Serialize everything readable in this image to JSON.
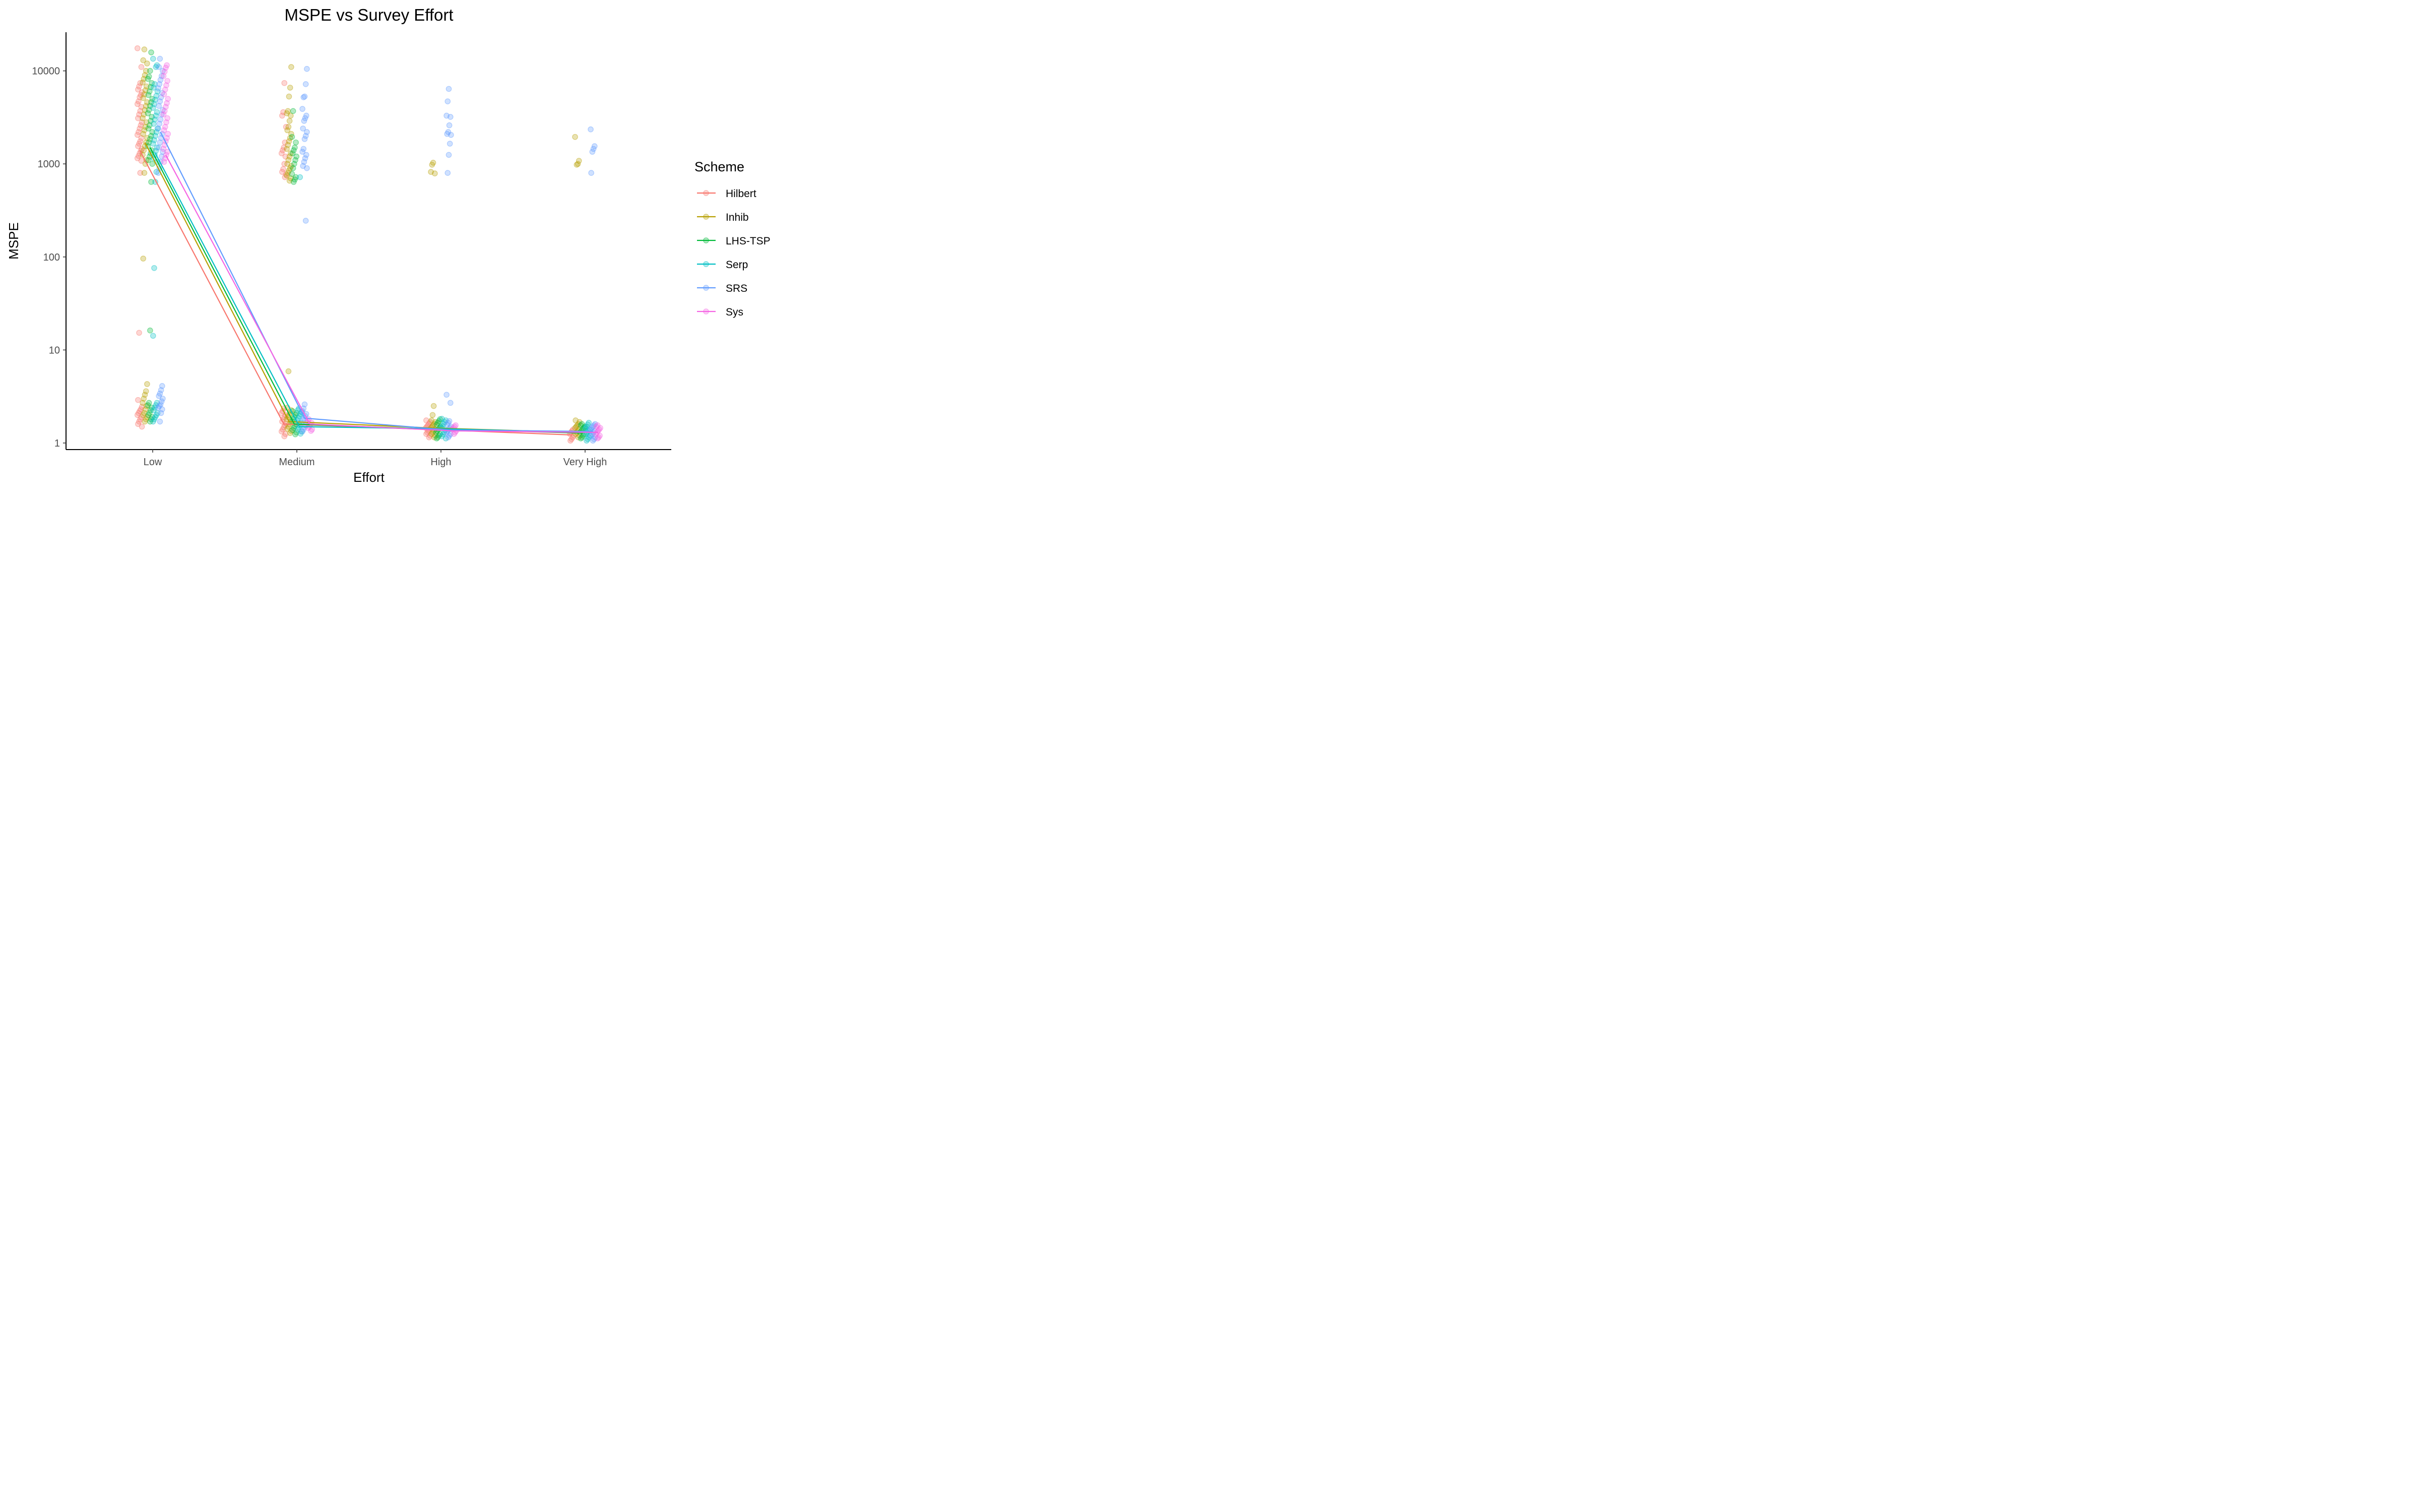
{
  "chart_data": {
    "type": "scatter",
    "title": "MSPE vs Survey Effort",
    "xlabel": "Effort",
    "ylabel": "MSPE",
    "y_scale": "log10",
    "ylim": [
      0.85,
      26000
    ],
    "y_ticks": [
      1,
      10,
      100,
      1000,
      10000
    ],
    "y_tick_labels": [
      "1",
      "10",
      "100",
      "1000",
      "10000"
    ],
    "categories": [
      "Low",
      "Medium",
      "High",
      "Very High"
    ],
    "legend": {
      "title": "Scheme",
      "position": "right"
    },
    "grid": false,
    "series": [
      {
        "name": "Hilbert",
        "color": "#F8766D",
        "line": [
          1400,
          1.6,
          1.4,
          1.22
        ],
        "points": [
          [
            17500,
            11000,
            7400,
            6800,
            6300,
            5900,
            5500,
            5200,
            4700,
            4400,
            4100,
            3700,
            3400,
            3100,
            2800,
            2600,
            2400,
            2200,
            2050,
            1900,
            1750,
            1650,
            1550,
            1450,
            1380,
            1300,
            1220,
            1150,
            1080,
            800,
            15.3,
            2.9,
            2.45,
            2.3,
            2.2,
            2.1,
            2.0,
            1.9,
            1.8,
            1.7,
            1.6,
            1.5
          ],
          [
            7400,
            3600,
            3300,
            2500,
            1700,
            1500,
            1400,
            1300,
            1200,
            1000,
            880,
            820,
            770,
            720,
            2.35,
            2.2,
            2.1,
            2.0,
            1.9,
            1.8,
            1.7,
            1.62,
            1.55,
            1.48,
            1.4,
            1.33,
            1.25,
            1.18
          ],
          [
            1.75,
            1.68,
            1.62,
            1.55,
            1.5,
            1.45,
            1.4,
            1.35,
            1.3,
            1.25,
            1.2,
            1.15
          ],
          [
            1.4,
            1.35,
            1.3,
            1.25,
            1.2,
            1.15,
            1.1,
            1.06
          ]
        ]
      },
      {
        "name": "Inhib",
        "color": "#B79F00",
        "line": [
          1700,
          1.7,
          1.45,
          1.3
        ],
        "points": [
          [
            17000,
            13000,
            12000,
            10000,
            9000,
            8200,
            7500,
            6800,
            6200,
            5600,
            5100,
            4600,
            4200,
            3800,
            3400,
            3100,
            2800,
            2500,
            2300,
            2100,
            1900,
            1700,
            1550,
            1400,
            1250,
            1100,
            1000,
            800,
            96,
            4.3,
            3.6,
            3.3,
            3.0,
            2.7,
            2.5,
            2.3,
            2.1,
            2.0,
            1.9,
            1.8,
            1.7
          ],
          [
            11000,
            6600,
            5300,
            3700,
            3500,
            3300,
            2900,
            2500,
            2300,
            2100,
            1900,
            1750,
            1600,
            1450,
            1300,
            1200,
            1100,
            1000,
            950,
            900,
            850,
            800,
            750,
            700,
            660,
            5.9,
            2.4,
            2.25,
            2.1,
            2.0,
            1.9,
            1.8,
            1.7,
            1.6,
            1.5,
            1.42,
            1.35,
            1.28
          ],
          [
            1030,
            980,
            820,
            790,
            2.5,
            2.0,
            1.75,
            1.68,
            1.6,
            1.55,
            1.5,
            1.45,
            1.4,
            1.35,
            1.3,
            1.25,
            1.2,
            1.15
          ],
          [
            1950,
            1080,
            1000,
            980,
            1.75,
            1.68,
            1.6,
            1.55,
            1.5,
            1.45,
            1.4,
            1.35,
            1.3,
            1.25,
            1.2,
            1.15
          ]
        ]
      },
      {
        "name": "LHS-TSP",
        "color": "#00BA38",
        "line": [
          1500,
          1.6,
          1.4,
          1.28
        ],
        "points": [
          [
            15800,
            10000,
            8700,
            8200,
            7400,
            6700,
            6000,
            5500,
            5000,
            4600,
            4200,
            3800,
            3500,
            3200,
            2900,
            2600,
            2400,
            2200,
            2000,
            1850,
            1700,
            1550,
            1400,
            1300,
            1200,
            1100,
            1000,
            640,
            16.2,
            2.7,
            2.55,
            2.4,
            2.25,
            2.1,
            2.0,
            1.9,
            1.8,
            1.7
          ],
          [
            3700,
            1950,
            1700,
            1500,
            1400,
            1300,
            1200,
            1100,
            1000,
            900,
            780,
            720,
            680,
            640,
            2.2,
            2.1,
            2.0,
            1.9,
            1.8,
            1.7,
            1.6,
            1.52,
            1.45,
            1.38,
            1.3,
            1.24
          ],
          [
            1.8,
            1.72,
            1.65,
            1.58,
            1.5,
            1.45,
            1.4,
            1.35,
            1.3,
            1.25,
            1.2,
            1.15,
            1.12
          ],
          [
            1.6,
            1.55,
            1.5,
            1.45,
            1.4,
            1.35,
            1.3,
            1.25,
            1.2,
            1.15,
            1.12
          ]
        ]
      },
      {
        "name": "Serp",
        "color": "#00BFC4",
        "line": [
          1300,
          1.5,
          1.42,
          1.3
        ],
        "points": [
          [
            13500,
            11500,
            11000,
            7200,
            6600,
            6000,
            5400,
            4900,
            4400,
            4000,
            3600,
            3300,
            3000,
            2700,
            2400,
            2200,
            2000,
            1800,
            1650,
            1500,
            1380,
            1250,
            1150,
            1050,
            820,
            640,
            76,
            14.2,
            2.7,
            2.55,
            2.4,
            2.25,
            2.1,
            2.0,
            1.9,
            1.8,
            1.7
          ],
          [
            720,
            2.35,
            2.25,
            2.15,
            2.05,
            1.95,
            1.85,
            1.75,
            1.65,
            1.55,
            1.48,
            1.4,
            1.33,
            1.26
          ],
          [
            1.82,
            1.75,
            1.68,
            1.6,
            1.52,
            1.45,
            1.38,
            1.3,
            1.24,
            1.18,
            1.12
          ],
          [
            1.65,
            1.58,
            1.5,
            1.45,
            1.4,
            1.35,
            1.3,
            1.25,
            1.2,
            1.15,
            1.1,
            1.06
          ]
        ]
      },
      {
        "name": "SRS",
        "color": "#619CFF",
        "line": [
          2200,
          1.85,
          1.38,
          1.33
        ],
        "points": [
          [
            13500,
            11000,
            10000,
            8800,
            8000,
            7200,
            6500,
            5800,
            5200,
            4700,
            4200,
            3800,
            3400,
            3000,
            2700,
            2400,
            2100,
            1900,
            1700,
            1500,
            1350,
            1200,
            1050,
            900,
            800,
            4.1,
            3.7,
            3.4,
            3.2,
            3.0,
            2.8,
            2.6,
            2.5,
            2.4,
            2.3,
            2.1,
            1.7
          ],
          [
            10500,
            7200,
            5300,
            5200,
            3900,
            3300,
            3100,
            2900,
            2400,
            2200,
            2000,
            1850,
            1450,
            1350,
            1250,
            1150,
            1050,
            950,
            900,
            245,
            2.6,
            2.35,
            2.2,
            2.05,
            1.95,
            1.85,
            1.75,
            1.65,
            1.55,
            1.48,
            1.4,
            1.33
          ],
          [
            6400,
            4700,
            3300,
            3200,
            2600,
            2200,
            2100,
            2050,
            1650,
            1250,
            800,
            3.3,
            2.7,
            1.72,
            1.65,
            1.58,
            1.5,
            1.45,
            1.4,
            1.35,
            1.3,
            1.25,
            1.2,
            1.15
          ],
          [
            2350,
            1550,
            1450,
            1350,
            800,
            1.6,
            1.55,
            1.5,
            1.45,
            1.4,
            1.35,
            1.3,
            1.25,
            1.2,
            1.15,
            1.1,
            1.06
          ]
        ]
      },
      {
        "name": "Sys",
        "color": "#F564E3",
        "line": [
          1250,
          1.6,
          1.35,
          1.3
        ],
        "points": [
          [
            11500,
            10800,
            9800,
            8800,
            7800,
            7000,
            6300,
            5600,
            5000,
            4500,
            4100,
            3700,
            3400,
            3100,
            2800,
            2500,
            2300,
            2100,
            1900,
            1750,
            1600,
            1450,
            1350,
            1250,
            1150,
            1050
          ],
          [
            1.8,
            1.72,
            1.65,
            1.58,
            1.5,
            1.45,
            1.4,
            1.35
          ],
          [
            1.55,
            1.5,
            1.45,
            1.4,
            1.35,
            1.3,
            1.25
          ],
          [
            1.55,
            1.5,
            1.45,
            1.4,
            1.35,
            1.3,
            1.25,
            1.2,
            1.15,
            1.12
          ]
        ]
      }
    ]
  }
}
